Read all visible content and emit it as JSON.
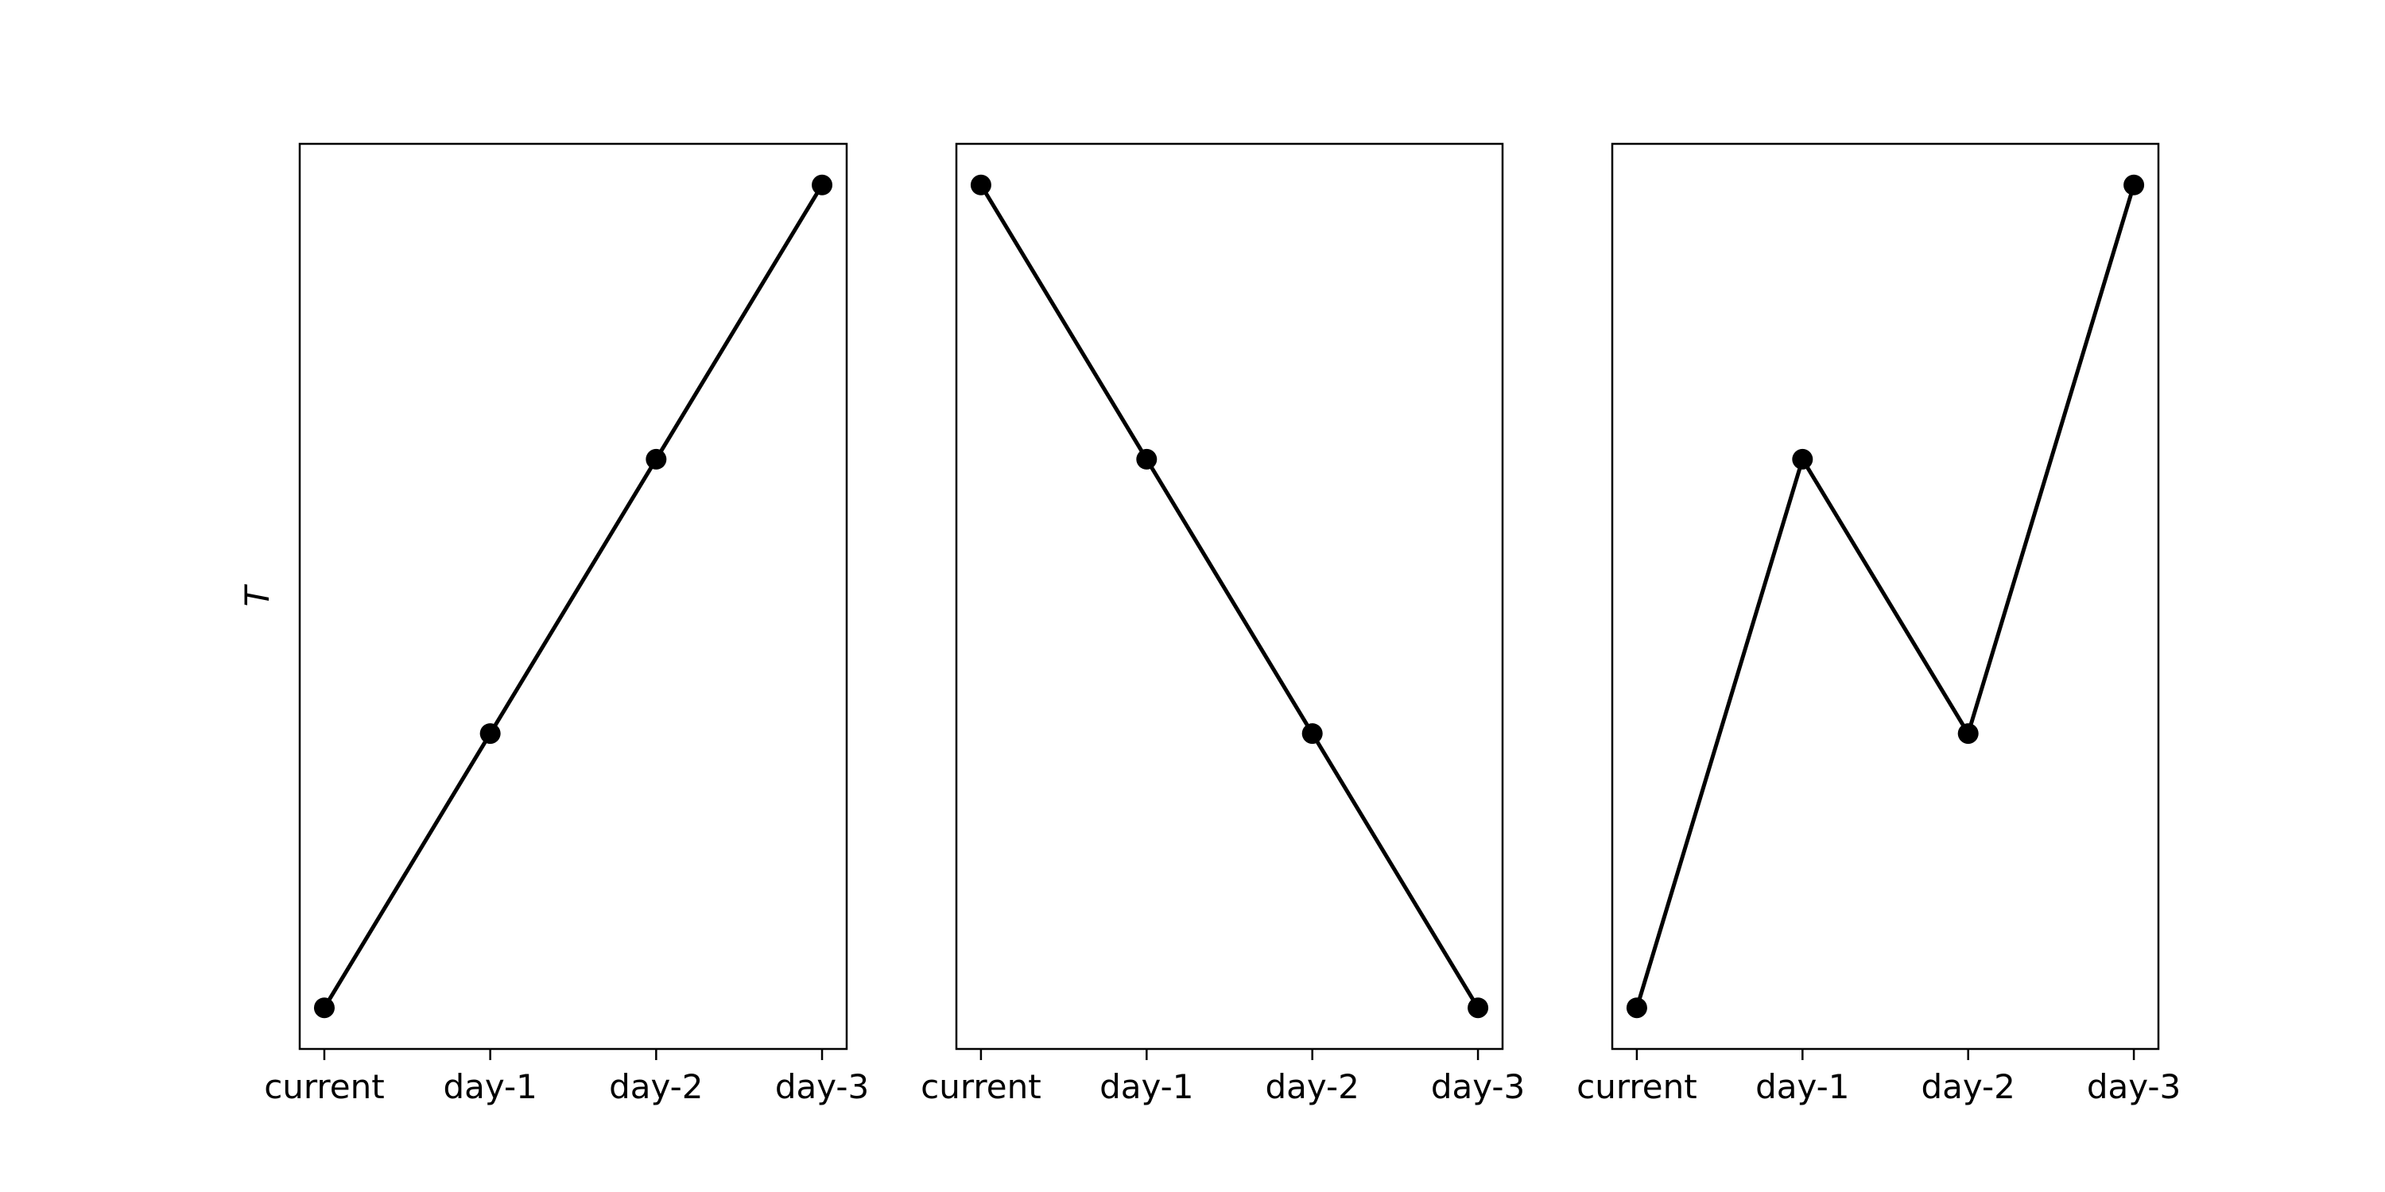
{
  "chart_data": [
    {
      "type": "line",
      "x": [
        "current",
        "day-1",
        "day-2",
        "day-3"
      ],
      "series": [
        {
          "values": [
            0,
            1,
            2,
            3
          ]
        }
      ],
      "ylabel": "T",
      "ylim": [
        -0.15,
        3.15
      ],
      "yticks": "none",
      "grid": false,
      "marker": "circle",
      "color": "#000000"
    },
    {
      "type": "line",
      "x": [
        "current",
        "day-1",
        "day-2",
        "day-3"
      ],
      "series": [
        {
          "values": [
            3,
            2,
            1,
            0
          ]
        }
      ],
      "ylabel": "",
      "ylim": [
        -0.15,
        3.15
      ],
      "yticks": "none",
      "grid": false,
      "marker": "circle",
      "color": "#000000"
    },
    {
      "type": "line",
      "x": [
        "current",
        "day-1",
        "day-2",
        "day-3"
      ],
      "series": [
        {
          "values": [
            0,
            2,
            1,
            3
          ]
        }
      ],
      "ylabel": "",
      "ylim": [
        -0.15,
        3.15
      ],
      "yticks": "none",
      "grid": false,
      "marker": "circle",
      "color": "#000000"
    }
  ]
}
